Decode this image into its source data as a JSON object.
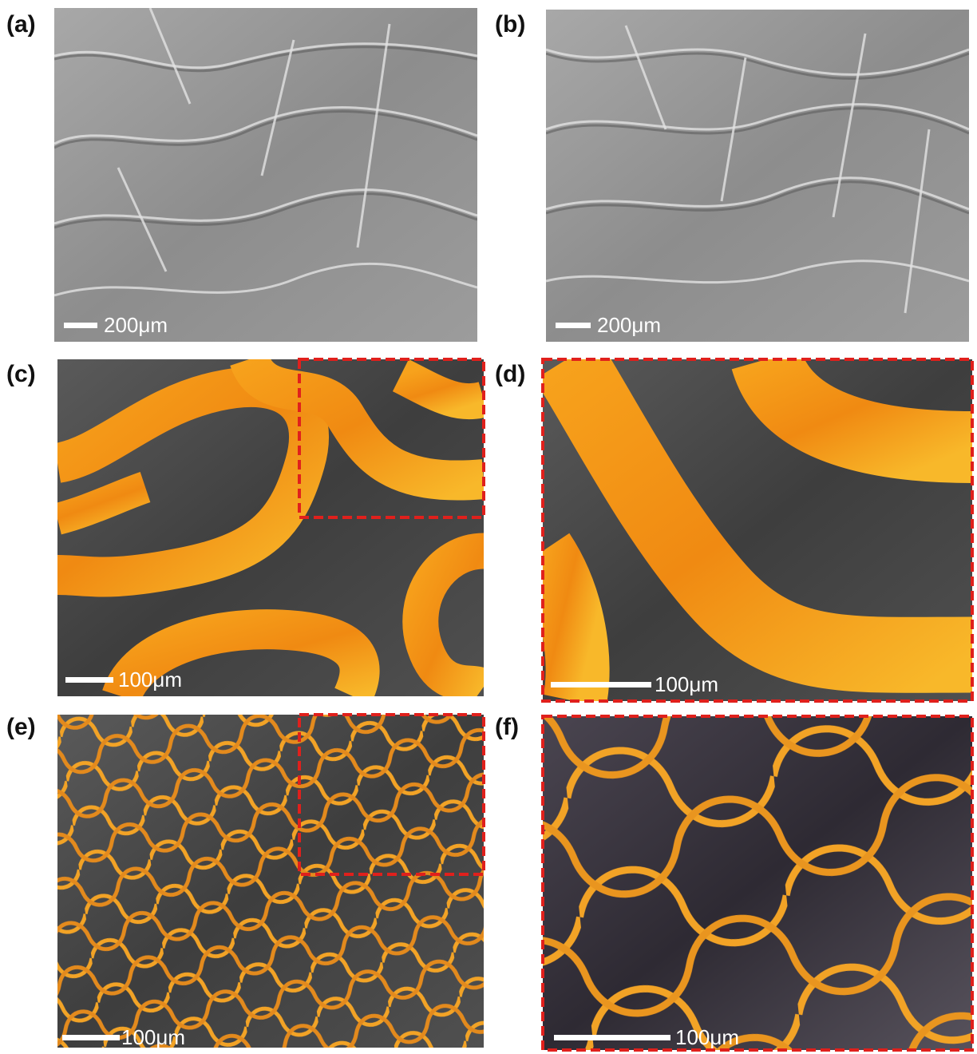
{
  "panels": [
    {
      "label": "(a)",
      "scale_bar": "200μm"
    },
    {
      "label": "(b)",
      "scale_bar": "200μm"
    },
    {
      "label": "(c)",
      "scale_bar": "100μm"
    },
    {
      "label": "(d)",
      "scale_bar": "100μm"
    },
    {
      "label": "(e)",
      "scale_bar": "100μm"
    },
    {
      "label": "(f)",
      "scale_bar": "100μm"
    }
  ]
}
